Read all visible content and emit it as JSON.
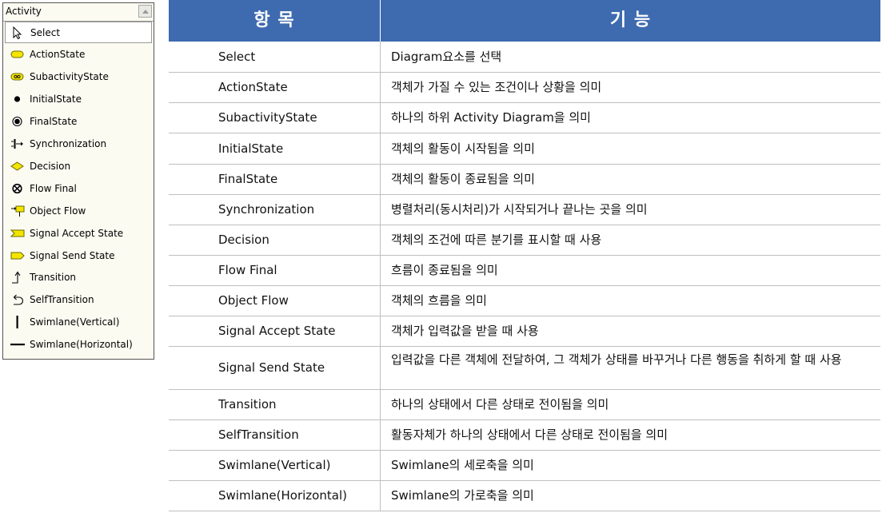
{
  "palette": {
    "title": "Activity",
    "items": [
      {
        "label": "Select",
        "icon": "cursor-arrow-icon"
      },
      {
        "label": "ActionState",
        "icon": "action-state-icon"
      },
      {
        "label": "SubactivityState",
        "icon": "subactivity-state-icon"
      },
      {
        "label": "InitialState",
        "icon": "initial-state-icon"
      },
      {
        "label": "FinalState",
        "icon": "final-state-icon"
      },
      {
        "label": "Synchronization",
        "icon": "synchronization-icon"
      },
      {
        "label": "Decision",
        "icon": "decision-diamond-icon"
      },
      {
        "label": "Flow Final",
        "icon": "flow-final-icon"
      },
      {
        "label": "Object Flow",
        "icon": "object-flow-icon"
      },
      {
        "label": "Signal Accept State",
        "icon": "signal-accept-icon"
      },
      {
        "label": "Signal Send State",
        "icon": "signal-send-icon"
      },
      {
        "label": "Transition",
        "icon": "transition-arrow-icon"
      },
      {
        "label": "SelfTransition",
        "icon": "self-transition-icon"
      },
      {
        "label": "Swimlane(Vertical)",
        "icon": "swimlane-vertical-icon"
      },
      {
        "label": "Swimlane(Horizontal)",
        "icon": "swimlane-horizontal-icon"
      }
    ],
    "selected_index": 0,
    "colors": {
      "icon_fill": "#f4e400",
      "icon_stroke": "#6b6b00"
    }
  },
  "table": {
    "header": {
      "item": "항   목",
      "function": "기         능"
    },
    "colors": {
      "header_bg": "#3e6aaf",
      "header_text": "#ffffff",
      "grid": "#bfbfbf"
    },
    "rows": [
      {
        "name": "Select",
        "desc": "Diagram요소를 선택"
      },
      {
        "name": "ActionState",
        "desc": "객체가 가질 수 있는 조건이나 상황을 의미"
      },
      {
        "name": "SubactivityState",
        "desc": "하나의 하위 Activity Diagram을 의미"
      },
      {
        "name": "InitialState",
        "desc": "객체의 활동이 시작됨을 의미"
      },
      {
        "name": "FinalState",
        "desc": "객체의 활동이 종료됨을 의미"
      },
      {
        "name": "Synchronization",
        "desc": "병렬처리(동시처리)가 시작되거나 끝나는 곳을 의미"
      },
      {
        "name": "Decision",
        "desc": "객체의 조건에 따른 분기를 표시할 때 사용"
      },
      {
        "name": "Flow Final",
        "desc": "흐름이 종료됨을 의미"
      },
      {
        "name": "Object Flow",
        "desc": "객체의 흐름을 의미"
      },
      {
        "name": "Signal Accept State",
        "desc": "객체가 입력값을 받을 때 사용"
      },
      {
        "name": "Signal Send State",
        "desc": "입력값을 다른 객체에 전달하여, 그 객체가 상태를 바꾸거나 다른 행동을 취하게 할 때 사용"
      },
      {
        "name": "Transition",
        "desc": "하나의 상태에서 다른 상태로 전이됨을 의미"
      },
      {
        "name": "SelfTransition",
        "desc": "활동자체가 하나의 상태에서 다른 상태로 전이됨을 의미"
      },
      {
        "name": "Swimlane(Vertical)",
        "desc": "Swimlane의 세로축을 의미"
      },
      {
        "name": "Swimlane(Horizontal)",
        "desc": "Swimlane의 가로축을 의미"
      }
    ]
  }
}
